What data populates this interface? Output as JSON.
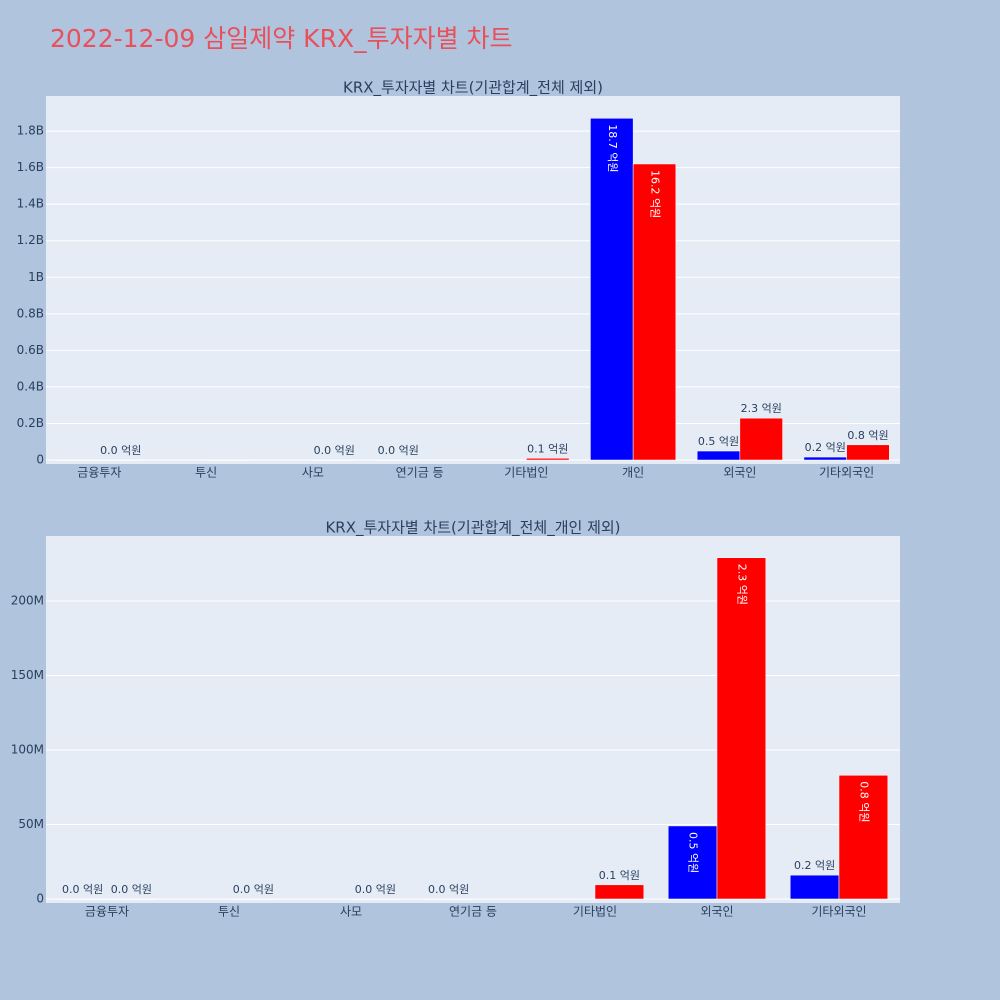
{
  "title": "2022-12-09 삼일제약 KRX_투자자별 차트",
  "chart_data": [
    {
      "type": "bar",
      "title": "KRX_투자자별 차트(기관합계_전체 제외)",
      "categories": [
        "금융투자",
        "투신",
        "사모",
        "연기금 등",
        "기타법인",
        "개인",
        "외국인",
        "기타외국인"
      ],
      "series": [
        {
          "color": "#0000ff",
          "values": [
            0,
            null,
            null,
            0,
            null,
            1870000000,
            49000000,
            16000000
          ],
          "value_labels": [
            null,
            null,
            null,
            "0.0 억원",
            null,
            "18.7 억원",
            "0.5 억원",
            "0.2 억원"
          ]
        },
        {
          "color": "#ff0000",
          "values": [
            0,
            0,
            0,
            null,
            9500000,
            1620000000,
            229000000,
            83000000
          ],
          "value_labels": [
            "0.0 억원",
            null,
            "0.0 억원",
            null,
            "0.1 억원",
            "16.2 억원",
            "2.3 억원",
            "0.8 억원"
          ]
        }
      ],
      "ylim": [
        -21900000,
        1992000000
      ],
      "yticks": [
        0,
        {
          "value": 200000000,
          "label": "0.2B"
        },
        {
          "value": 400000000,
          "label": "0.4B"
        },
        {
          "value": 600000000,
          "label": "0.6B"
        },
        {
          "value": 800000000,
          "label": "0.8B"
        },
        {
          "value": 1000000000,
          "label": "1B"
        },
        {
          "value": 1200000000,
          "label": "1.2B"
        },
        {
          "value": 1400000000,
          "label": "1.4B"
        },
        {
          "value": 1600000000,
          "label": "1.6B"
        },
        {
          "value": 1800000000,
          "label": "1.8B"
        }
      ],
      "grid": true
    },
    {
      "type": "bar",
      "title": "KRX_투자자별 차트(기관합계_전체_개인 제외)",
      "categories": [
        "금융투자",
        "투신",
        "사모",
        "연기금 등",
        "기타법인",
        "외국인",
        "기타외국인"
      ],
      "series": [
        {
          "color": "#0000ff",
          "values": [
            0,
            null,
            null,
            0,
            null,
            49000000,
            16000000
          ],
          "value_labels": [
            "0.0 억원",
            null,
            null,
            "0.0 억원",
            null,
            "0.5 억원",
            "0.2 억원"
          ]
        },
        {
          "color": "#ff0000",
          "values": [
            0,
            0,
            0,
            null,
            9500000,
            229000000,
            83000000
          ],
          "value_labels": [
            "0.0 억원",
            "0.0 억원",
            "0.0 억원",
            null,
            "0.1 억원",
            "2.3 억원",
            "0.8 억원"
          ]
        }
      ],
      "ylim": [
        -2700000,
        243600000
      ],
      "yticks": [
        0,
        {
          "value": 50000000,
          "label": "50M"
        },
        {
          "value": 100000000,
          "label": "100M"
        },
        {
          "value": 150000000,
          "label": "150M"
        },
        {
          "value": 200000000,
          "label": "200M"
        }
      ],
      "grid": true
    }
  ]
}
